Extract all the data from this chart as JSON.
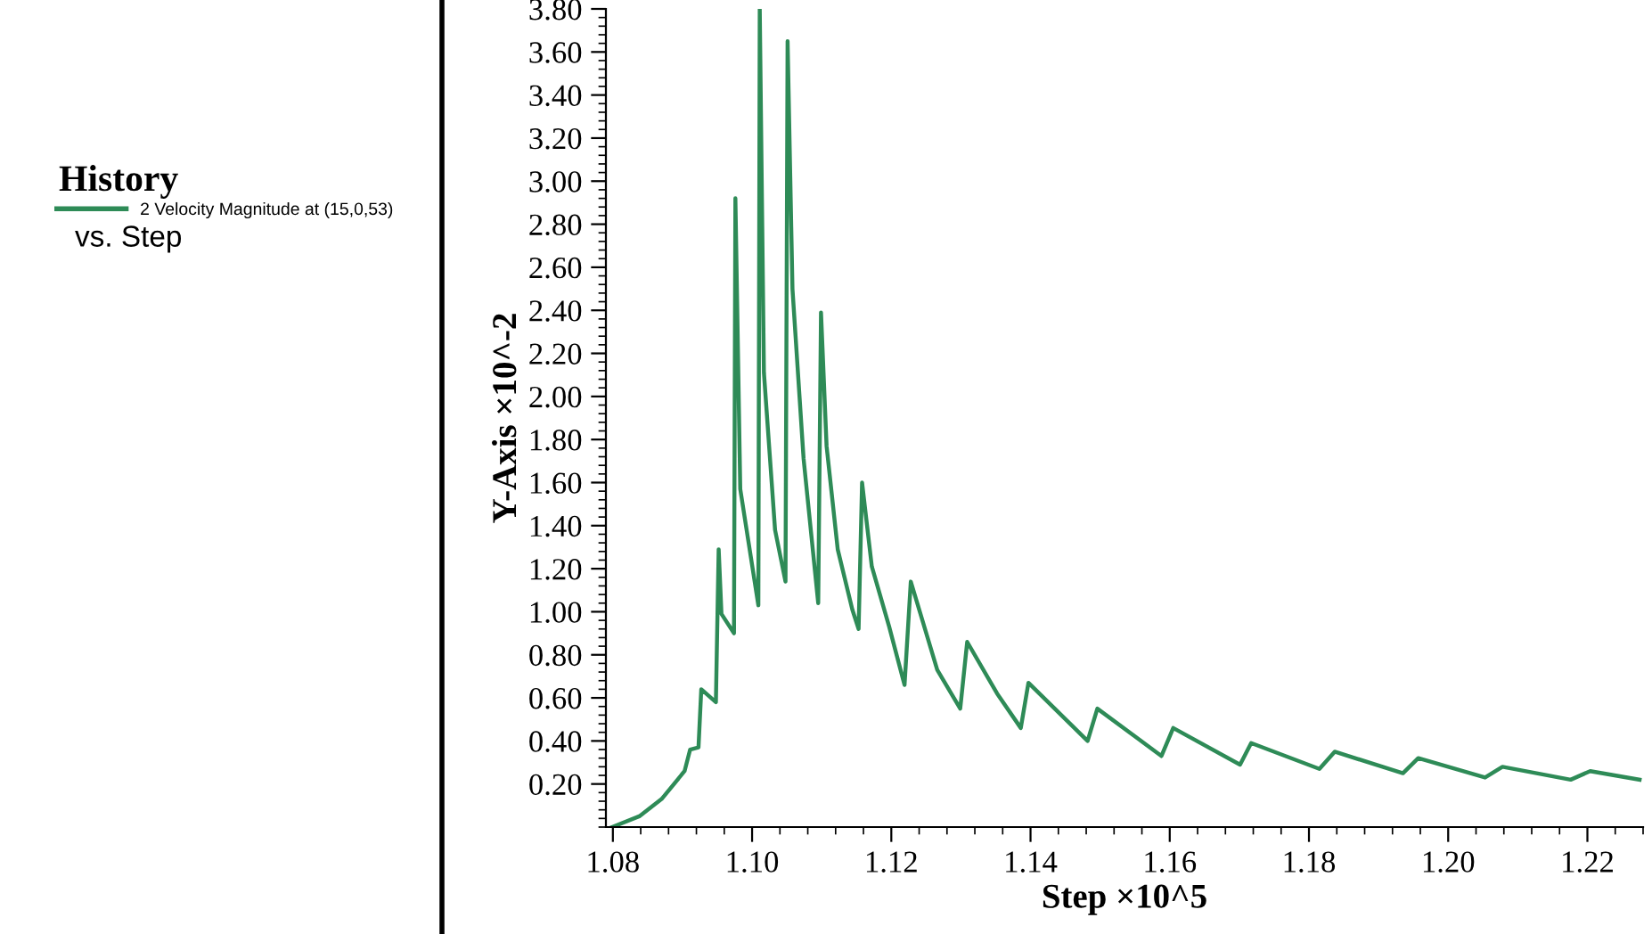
{
  "chart_data": {
    "type": "line",
    "title": "History",
    "subtitle": "vs. Step",
    "xlabel": "Step ×10^5",
    "ylabel": "Y-Axis ×10^-2",
    "x": [
      1.0799,
      1.0838,
      1.087,
      1.0903,
      1.0911,
      1.0923,
      1.0927,
      1.0948,
      1.0952,
      1.0956,
      1.0974,
      1.0976,
      1.0983,
      1.1009,
      1.1011,
      1.1017,
      1.1033,
      1.1048,
      1.1051,
      1.1058,
      1.1074,
      1.1095,
      1.1099,
      1.1107,
      1.1123,
      1.1144,
      1.1153,
      1.1158,
      1.1172,
      1.1197,
      1.1219,
      1.1228,
      1.1266,
      1.1299,
      1.1309,
      1.1352,
      1.1386,
      1.1397,
      1.1482,
      1.1496,
      1.1588,
      1.1605,
      1.1701,
      1.1717,
      1.1815,
      1.1837,
      1.1935,
      1.1957,
      1.2053,
      1.2078,
      1.2176,
      1.2204,
      1.2275
    ],
    "series": [
      {
        "name": "2 Velocity Magnitude at (15,0,53)",
        "color": "#2e8b57",
        "values": [
          0.0,
          0.05,
          0.13,
          0.26,
          0.36,
          0.37,
          0.64,
          0.58,
          1.29,
          0.99,
          0.9,
          2.92,
          1.57,
          1.03,
          3.8,
          2.11,
          1.38,
          1.14,
          3.65,
          2.5,
          1.71,
          1.04,
          2.39,
          1.77,
          1.29,
          1.01,
          0.92,
          1.6,
          1.21,
          0.93,
          0.66,
          1.14,
          0.73,
          0.55,
          0.86,
          0.62,
          0.46,
          0.67,
          0.4,
          0.55,
          0.33,
          0.46,
          0.29,
          0.39,
          0.27,
          0.35,
          0.25,
          0.32,
          0.23,
          0.28,
          0.22,
          0.26,
          0.22
        ]
      }
    ],
    "xlim": [
      1.079,
      1.228
    ],
    "xticks": [
      {
        "value": 1.08,
        "label": "1.08"
      },
      {
        "value": 1.1,
        "label": "1.10"
      },
      {
        "value": 1.12,
        "label": "1.12"
      },
      {
        "value": 1.14,
        "label": "1.14"
      },
      {
        "value": 1.16,
        "label": "1.16"
      },
      {
        "value": 1.18,
        "label": "1.18"
      },
      {
        "value": 1.2,
        "label": "1.20"
      },
      {
        "value": 1.22,
        "label": "1.22"
      }
    ],
    "ylim": [
      0.0,
      3.8
    ],
    "yticks": [
      {
        "value": 0.2,
        "label": "0.20"
      },
      {
        "value": 0.4,
        "label": "0.40"
      },
      {
        "value": 0.6,
        "label": "0.60"
      },
      {
        "value": 0.8,
        "label": "0.80"
      },
      {
        "value": 1.0,
        "label": "1.00"
      },
      {
        "value": 1.2,
        "label": "1.20"
      },
      {
        "value": 1.4,
        "label": "1.40"
      },
      {
        "value": 1.6,
        "label": "1.60"
      },
      {
        "value": 1.8,
        "label": "1.80"
      },
      {
        "value": 2.0,
        "label": "2.00"
      },
      {
        "value": 2.2,
        "label": "2.20"
      },
      {
        "value": 2.4,
        "label": "2.40"
      },
      {
        "value": 2.6,
        "label": "2.60"
      },
      {
        "value": 2.8,
        "label": "2.80"
      },
      {
        "value": 3.0,
        "label": "3.00"
      },
      {
        "value": 3.2,
        "label": "3.20"
      },
      {
        "value": 3.4,
        "label": "3.40"
      },
      {
        "value": 3.6,
        "label": "3.60"
      },
      {
        "value": 3.8,
        "label": "3.80"
      }
    ],
    "legend": "left",
    "grid": false,
    "marker": "none",
    "line_style": "solid"
  }
}
